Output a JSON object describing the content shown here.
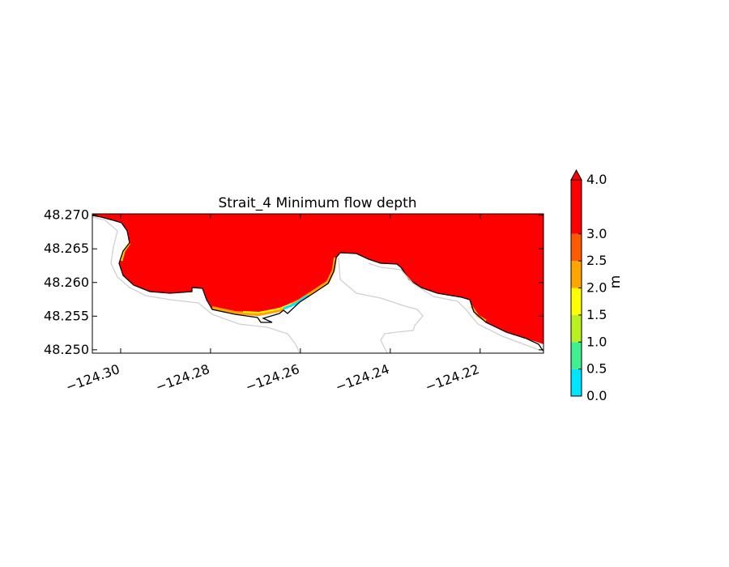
{
  "chart_data": {
    "type": "contour",
    "title": "Strait_4 Minimum flow depth",
    "xlim": [
      -124.3063,
      -124.2059
    ],
    "ylim": [
      48.2495,
      48.2702
    ],
    "xticks": [
      {
        "value": -124.3,
        "label": "−124.30"
      },
      {
        "value": -124.28,
        "label": "−124.28"
      },
      {
        "value": -124.26,
        "label": "−124.26"
      },
      {
        "value": -124.24,
        "label": "−124.24"
      },
      {
        "value": -124.22,
        "label": "−124.22"
      }
    ],
    "yticks": [
      {
        "value": 48.25,
        "label": "48.250"
      },
      {
        "value": 48.255,
        "label": "48.255"
      },
      {
        "value": 48.26,
        "label": "48.260"
      },
      {
        "value": 48.265,
        "label": "48.265"
      },
      {
        "value": 48.27,
        "label": "48.270"
      }
    ],
    "colorbar": {
      "label": "m",
      "extend": "max",
      "levels": [
        0,
        0.5,
        1,
        1.5,
        2,
        2.5,
        3,
        4
      ],
      "colors": [
        "#00e5ff",
        "#40f090",
        "#b8f020",
        "#ffff00",
        "#ffa500",
        "#ff5a00",
        "#ff0000"
      ],
      "ticks": [
        {
          "value": 0,
          "label": "0.0"
        },
        {
          "value": 0.5,
          "label": "0.5"
        },
        {
          "value": 1,
          "label": "1.0"
        },
        {
          "value": 1.5,
          "label": "1.5"
        },
        {
          "value": 2,
          "label": "2.0"
        },
        {
          "value": 2.5,
          "label": "2.5"
        },
        {
          "value": 3,
          "label": "3.0"
        },
        {
          "value": 4,
          "label": "4.0"
        }
      ]
    }
  }
}
